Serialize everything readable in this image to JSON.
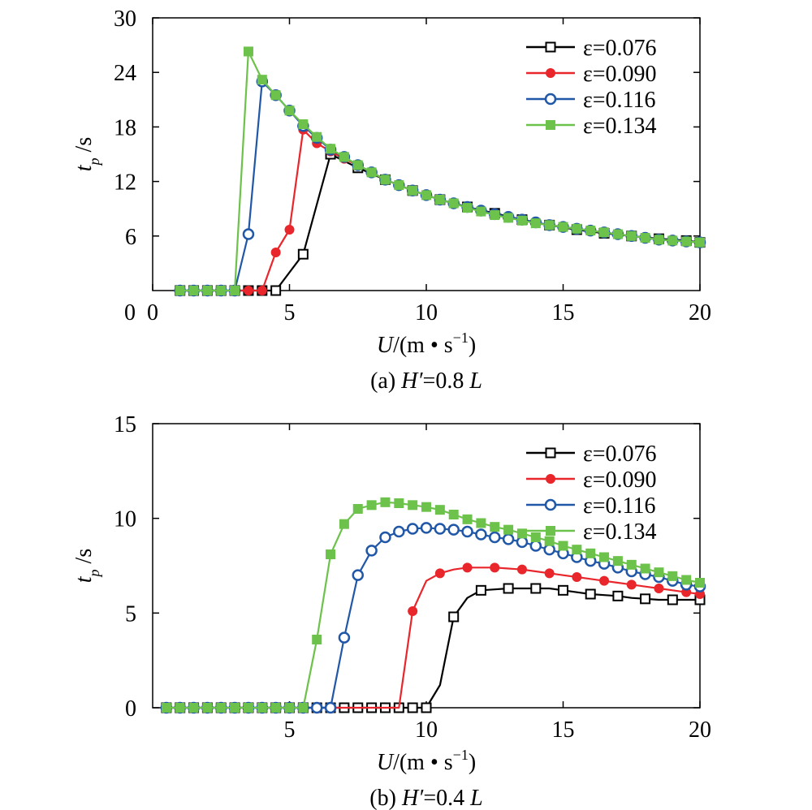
{
  "chart_data": [
    {
      "type": "line",
      "caption": "(a) H′=0.8 L",
      "caption_parts": {
        "letter": "(a) ",
        "var": "H′",
        "eq": "=0.8 ",
        "unit": "L"
      },
      "xlabel_parts": {
        "var": "U",
        "rest": "/(m • s",
        "sup": "−1",
        "close": ")"
      },
      "ylabel_parts": {
        "var": "t",
        "sub": "p",
        "rest": " /s"
      },
      "xlim": [
        0,
        20
      ],
      "ylim": [
        0,
        30
      ],
      "xticks": [
        0,
        5,
        10,
        15,
        20
      ],
      "xtick_labels": [
        "0",
        "5",
        "10",
        "15",
        "20"
      ],
      "yticks": [
        6,
        12,
        18,
        24,
        30
      ],
      "ytick_labels": [
        "6",
        "12",
        "18",
        "24",
        "30"
      ],
      "legend_position": "top-right",
      "series": [
        {
          "name": "ε=0.076",
          "color": "#000000",
          "marker": "open-square",
          "x": [
            1,
            1.5,
            2,
            2.5,
            3,
            3.5,
            4,
            4.5,
            5.5,
            6.5,
            7.5,
            8.5,
            9.5,
            10.5,
            11.5,
            12.5,
            13.5,
            14.5,
            15.5,
            16.5,
            17.5,
            18.5,
            19.5,
            20
          ],
          "y": [
            0,
            0,
            0,
            0,
            0,
            0,
            0,
            0,
            4,
            15,
            13.5,
            12.2,
            11,
            10,
            9.2,
            8.5,
            7.8,
            7.2,
            6.7,
            6.3,
            6,
            5.7,
            5.5,
            5.3
          ]
        },
        {
          "name": "ε=0.090",
          "color": "#e8262b",
          "marker": "filled-circle",
          "x": [
            1,
            1.5,
            2,
            2.5,
            3,
            3.5,
            4,
            4.5,
            5,
            5.5,
            6,
            6.5,
            7,
            7.5,
            8,
            8.5,
            9,
            9.5,
            10,
            10.5,
            11,
            11.5,
            12,
            12.5,
            13,
            13.5,
            14,
            14.5,
            15,
            15.5,
            16,
            16.5,
            17,
            17.5,
            18,
            18.5,
            19,
            19.5,
            20
          ],
          "y": [
            0,
            0,
            0,
            0,
            0,
            0,
            0,
            4.2,
            6.7,
            17.7,
            16.2,
            15.3,
            14.5,
            13.8,
            13,
            12.2,
            11.6,
            11,
            10.5,
            10,
            9.6,
            9.2,
            8.8,
            8.4,
            8.1,
            7.8,
            7.5,
            7.2,
            7,
            6.8,
            6.6,
            6.4,
            6.2,
            6,
            5.8,
            5.6,
            5.5,
            5.4,
            5.3
          ]
        },
        {
          "name": "ε=0.116",
          "color": "#2057a7",
          "marker": "open-circle",
          "x": [
            1,
            1.5,
            2,
            2.5,
            3,
            3.5,
            4,
            4.5,
            5,
            5.5,
            6,
            6.5,
            7,
            7.5,
            8,
            8.5,
            9,
            9.5,
            10,
            10.5,
            11,
            11.5,
            12,
            12.5,
            13,
            13.5,
            14,
            14.5,
            15,
            15.5,
            16,
            16.5,
            17,
            17.5,
            18,
            18.5,
            19,
            19.5,
            20
          ],
          "y": [
            0,
            0,
            0,
            0,
            0,
            6.2,
            23,
            21.5,
            19.8,
            18.1,
            16.8,
            15.5,
            14.7,
            13.8,
            13,
            12.2,
            11.6,
            11,
            10.5,
            10,
            9.6,
            9.2,
            8.8,
            8.4,
            8.1,
            7.8,
            7.5,
            7.2,
            7,
            6.8,
            6.6,
            6.4,
            6.2,
            6,
            5.8,
            5.6,
            5.5,
            5.4,
            5.3
          ]
        },
        {
          "name": "ε=0.134",
          "color": "#6cc24a",
          "marker": "filled-square",
          "x": [
            1,
            1.5,
            2,
            2.5,
            3,
            3.5,
            4,
            4.5,
            5,
            5.5,
            6,
            6.5,
            7,
            7.5,
            8,
            8.5,
            9,
            9.5,
            10,
            10.5,
            11,
            11.5,
            12,
            12.5,
            13,
            13.5,
            14,
            14.5,
            15,
            15.5,
            16,
            16.5,
            17,
            17.5,
            18,
            18.5,
            19,
            19.5,
            20
          ],
          "y": [
            0,
            0,
            0,
            0,
            0,
            26.3,
            23.2,
            21.5,
            19.8,
            18.3,
            16.9,
            15.6,
            14.7,
            13.8,
            13,
            12.2,
            11.6,
            11,
            10.5,
            10,
            9.6,
            9.1,
            8.7,
            8.3,
            8,
            7.7,
            7.4,
            7.2,
            7,
            6.8,
            6.6,
            6.4,
            6.2,
            6,
            5.8,
            5.6,
            5.5,
            5.4,
            5.3
          ]
        }
      ]
    },
    {
      "type": "line",
      "caption": "(b) H′=0.4 L",
      "caption_parts": {
        "letter": "(b) ",
        "var": "H′",
        "eq": "=0.4 ",
        "unit": "L"
      },
      "xlabel_parts": {
        "var": "U",
        "rest": "/(m • s",
        "sup": "−1",
        "close": ")"
      },
      "ylabel_parts": {
        "var": "t",
        "sub": "p",
        "rest": " /s"
      },
      "xlim": [
        0,
        20
      ],
      "ylim": [
        0,
        15
      ],
      "xticks": [
        5,
        10,
        15,
        20
      ],
      "xtick_labels": [
        "5",
        "10",
        "15",
        "20"
      ],
      "yticks": [
        0,
        5,
        10,
        15
      ],
      "ytick_labels": [
        "0",
        "5",
        "10",
        "15"
      ],
      "legend_position": "top-right",
      "series": [
        {
          "name": "ε=0.076",
          "color": "#000000",
          "marker": "open-square",
          "x": [
            0.5,
            1,
            1.5,
            2,
            2.5,
            3,
            3.5,
            4,
            4.5,
            5,
            5.5,
            6,
            6.5,
            7,
            7.5,
            8,
            8.5,
            9,
            9.5,
            10,
            10.5,
            11,
            11.5,
            12,
            12.5,
            13,
            13.5,
            14,
            14.5,
            15,
            15.5,
            16,
            16.5,
            17,
            17.5,
            18,
            18.5,
            19,
            19.5,
            20
          ],
          "y": [
            0,
            0,
            0,
            0,
            0,
            0,
            0,
            0,
            0,
            0,
            0,
            0,
            0,
            0,
            0,
            0,
            0,
            0,
            0,
            0,
            1.2,
            4.8,
            5.8,
            6.2,
            6.25,
            6.3,
            6.3,
            6.3,
            6.3,
            6.2,
            6.1,
            6,
            5.95,
            5.9,
            5.8,
            5.75,
            5.7,
            5.7,
            5.7,
            5.7
          ],
          "markers": [
            0,
            1,
            2,
            3,
            4,
            5,
            6,
            7,
            8,
            9,
            10,
            11,
            12,
            13,
            14,
            15,
            16,
            17,
            18,
            19,
            21,
            23,
            25,
            27,
            29,
            31,
            33,
            35,
            37,
            39
          ]
        },
        {
          "name": "ε=0.090",
          "color": "#e8262b",
          "marker": "filled-circle",
          "x": [
            0.5,
            1,
            1.5,
            2,
            2.5,
            3,
            3.5,
            4,
            4.5,
            5,
            5.5,
            6,
            6.5,
            7,
            7.5,
            8,
            8.5,
            9,
            9.5,
            10,
            10.5,
            11,
            11.5,
            12,
            12.5,
            13,
            13.5,
            14,
            14.5,
            15,
            15.5,
            16,
            16.5,
            17,
            17.5,
            18,
            18.5,
            19,
            19.5,
            20
          ],
          "y": [
            0,
            0,
            0,
            0,
            0,
            0,
            0,
            0,
            0,
            0,
            0,
            0,
            0,
            0,
            0,
            0,
            0,
            0,
            5.1,
            6.7,
            7.1,
            7.3,
            7.4,
            7.4,
            7.4,
            7.35,
            7.3,
            7.2,
            7.1,
            7.0,
            6.9,
            6.8,
            6.7,
            6.6,
            6.5,
            6.4,
            6.3,
            6.2,
            6.1,
            6.0
          ],
          "markers": [
            18,
            20,
            22,
            24,
            26,
            28,
            30,
            32,
            34,
            36,
            38,
            39
          ]
        },
        {
          "name": "ε=0.116",
          "color": "#2057a7",
          "marker": "open-circle",
          "x": [
            0.5,
            1,
            1.5,
            2,
            2.5,
            3,
            3.5,
            4,
            4.5,
            5,
            5.5,
            6,
            6.5,
            7,
            7.5,
            8,
            8.5,
            9,
            9.5,
            10,
            10.5,
            11,
            11.5,
            12,
            12.5,
            13,
            13.5,
            14,
            14.5,
            15,
            15.5,
            16,
            16.5,
            17,
            17.5,
            18,
            18.5,
            19,
            19.5,
            20
          ],
          "y": [
            0,
            0,
            0,
            0,
            0,
            0,
            0,
            0,
            0,
            0,
            0,
            0,
            0,
            3.7,
            7.0,
            8.3,
            9.0,
            9.3,
            9.45,
            9.5,
            9.45,
            9.4,
            9.3,
            9.15,
            9.0,
            8.9,
            8.75,
            8.55,
            8.35,
            8.15,
            7.95,
            7.75,
            7.6,
            7.4,
            7.2,
            7.05,
            6.9,
            6.7,
            6.5,
            6.4
          ]
        },
        {
          "name": "ε=0.134",
          "color": "#6cc24a",
          "marker": "filled-square",
          "x": [
            0.5,
            1,
            1.5,
            2,
            2.5,
            3,
            3.5,
            4,
            4.5,
            5,
            5.5,
            6,
            6.5,
            7,
            7.5,
            8,
            8.5,
            9,
            9.5,
            10,
            10.5,
            11,
            11.5,
            12,
            12.5,
            13,
            13.5,
            14,
            14.5,
            15,
            15.5,
            16,
            16.5,
            17,
            17.5,
            18,
            18.5,
            19,
            19.5,
            20
          ],
          "y": [
            0,
            0,
            0,
            0,
            0,
            0,
            0,
            0,
            0,
            0,
            0,
            3.6,
            8.1,
            9.7,
            10.5,
            10.7,
            10.85,
            10.8,
            10.7,
            10.6,
            10.45,
            10.2,
            9.95,
            9.75,
            9.55,
            9.4,
            9.2,
            9.0,
            8.8,
            8.55,
            8.35,
            8.15,
            7.95,
            7.75,
            7.55,
            7.35,
            7.15,
            6.95,
            6.75,
            6.6
          ]
        }
      ]
    }
  ]
}
